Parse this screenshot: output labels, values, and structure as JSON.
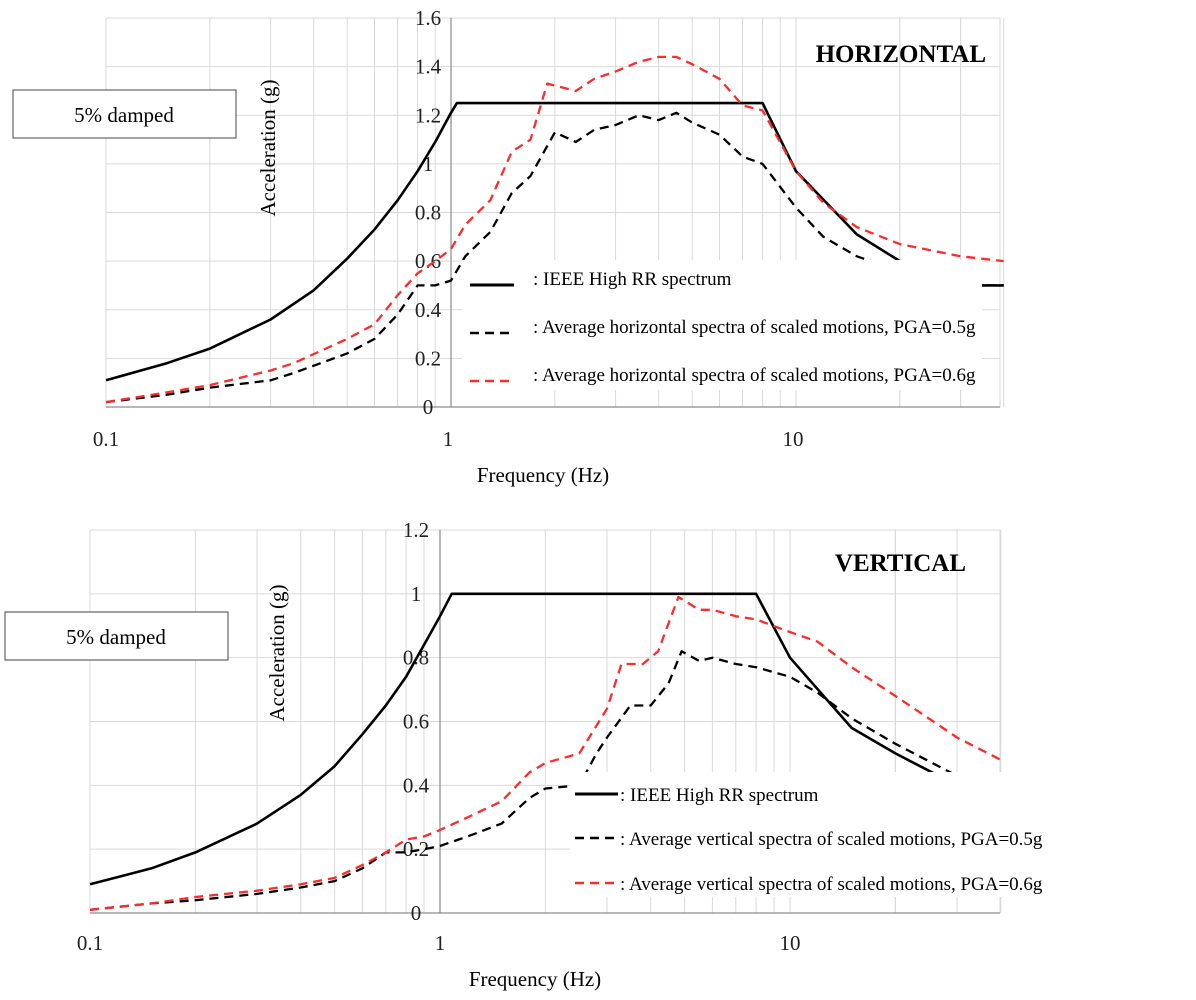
{
  "chart_data": [
    {
      "type": "line",
      "title": "HORIZONTAL",
      "note": "5% damped",
      "xlabel": "Frequency (Hz)",
      "ylabel": "Acceleration (g)",
      "x_scale": "log",
      "xlim": [
        0.1,
        40
      ],
      "ylim": [
        0,
        1.6
      ],
      "x_tick_labels": [
        "0.1",
        "1",
        "10"
      ],
      "y_tick_labels": [
        "0",
        "0.2",
        "0.4",
        "0.6",
        "0.8",
        "1",
        "1.2",
        "1.4",
        "1.6"
      ],
      "grid": true,
      "legend_position": "bottom-right",
      "series": [
        {
          "name": ": IEEE High RR spectrum",
          "color": "#000000",
          "style": "solid",
          "points": [
            [
              0.1,
              0.11
            ],
            [
              0.15,
              0.18
            ],
            [
              0.2,
              0.24
            ],
            [
              0.3,
              0.36
            ],
            [
              0.4,
              0.48
            ],
            [
              0.5,
              0.61
            ],
            [
              0.6,
              0.73
            ],
            [
              0.7,
              0.85
            ],
            [
              0.8,
              0.97
            ],
            [
              0.9,
              1.09
            ],
            [
              1.0,
              1.21
            ],
            [
              1.04,
              1.25
            ],
            [
              8,
              1.25
            ],
            [
              10,
              0.97
            ],
            [
              15,
              0.71
            ],
            [
              20,
              0.6
            ],
            [
              30,
              0.5
            ],
            [
              40,
              0.5
            ]
          ]
        },
        {
          "name": ": Average horizontal spectra of scaled motions, PGA=0.5g",
          "color": "#000000",
          "style": "dashed",
          "points": [
            [
              0.1,
              0.02
            ],
            [
              0.15,
              0.05
            ],
            [
              0.2,
              0.08
            ],
            [
              0.3,
              0.11
            ],
            [
              0.35,
              0.14
            ],
            [
              0.5,
              0.22
            ],
            [
              0.6,
              0.28
            ],
            [
              0.7,
              0.38
            ],
            [
              0.8,
              0.5
            ],
            [
              0.9,
              0.5
            ],
            [
              1.0,
              0.52
            ],
            [
              1.1,
              0.62
            ],
            [
              1.3,
              0.72
            ],
            [
              1.5,
              0.88
            ],
            [
              1.7,
              0.95
            ],
            [
              2.0,
              1.13
            ],
            [
              2.3,
              1.09
            ],
            [
              2.6,
              1.14
            ],
            [
              3.0,
              1.16
            ],
            [
              3.5,
              1.2
            ],
            [
              4.0,
              1.18
            ],
            [
              4.5,
              1.21
            ],
            [
              5.0,
              1.17
            ],
            [
              6.0,
              1.12
            ],
            [
              7.0,
              1.03
            ],
            [
              8.0,
              1.0
            ],
            [
              10,
              0.82
            ],
            [
              12,
              0.7
            ],
            [
              15,
              0.62
            ],
            [
              20,
              0.56
            ],
            [
              30,
              0.5
            ],
            [
              40,
              0.5
            ]
          ]
        },
        {
          "name": ": Average horizontal spectra of scaled motions, PGA=0.6g",
          "color": "#ff2a2a",
          "style": "dashed",
          "points": [
            [
              0.1,
              0.02
            ],
            [
              0.15,
              0.06
            ],
            [
              0.2,
              0.09
            ],
            [
              0.3,
              0.15
            ],
            [
              0.35,
              0.18
            ],
            [
              0.5,
              0.28
            ],
            [
              0.6,
              0.34
            ],
            [
              0.7,
              0.46
            ],
            [
              0.8,
              0.55
            ],
            [
              0.9,
              0.6
            ],
            [
              1.0,
              0.65
            ],
            [
              1.1,
              0.75
            ],
            [
              1.3,
              0.85
            ],
            [
              1.5,
              1.05
            ],
            [
              1.7,
              1.1
            ],
            [
              1.9,
              1.33
            ],
            [
              2.3,
              1.3
            ],
            [
              2.6,
              1.35
            ],
            [
              3.0,
              1.38
            ],
            [
              3.5,
              1.42
            ],
            [
              4.0,
              1.44
            ],
            [
              4.5,
              1.44
            ],
            [
              5.0,
              1.41
            ],
            [
              6.0,
              1.35
            ],
            [
              7.0,
              1.24
            ],
            [
              8.0,
              1.22
            ],
            [
              10,
              0.97
            ],
            [
              12,
              0.84
            ],
            [
              15,
              0.74
            ],
            [
              20,
              0.67
            ],
            [
              30,
              0.62
            ],
            [
              40,
              0.6
            ]
          ]
        }
      ]
    },
    {
      "type": "line",
      "title": "VERTICAL",
      "note": "5% damped",
      "xlabel": "Frequency (Hz)",
      "ylabel": "Acceleration (g)",
      "x_scale": "log",
      "xlim": [
        0.1,
        40
      ],
      "ylim": [
        0,
        1.2
      ],
      "x_tick_labels": [
        "0.1",
        "1",
        "10"
      ],
      "y_tick_labels": [
        "0",
        "0.2",
        "0.4",
        "0.6",
        "0.8",
        "1",
        "1.2"
      ],
      "grid": true,
      "legend_position": "bottom-right",
      "series": [
        {
          "name": ": IEEE High RR spectrum",
          "color": "#000000",
          "style": "solid",
          "points": [
            [
              0.1,
              0.09
            ],
            [
              0.15,
              0.14
            ],
            [
              0.2,
              0.19
            ],
            [
              0.3,
              0.28
            ],
            [
              0.4,
              0.37
            ],
            [
              0.5,
              0.46
            ],
            [
              0.6,
              0.56
            ],
            [
              0.7,
              0.65
            ],
            [
              0.8,
              0.74
            ],
            [
              0.9,
              0.84
            ],
            [
              1.0,
              0.93
            ],
            [
              1.08,
              1.0
            ],
            [
              8,
              1.0
            ],
            [
              10,
              0.8
            ],
            [
              15,
              0.58
            ],
            [
              20,
              0.5
            ],
            [
              30,
              0.4
            ],
            [
              40,
              0.4
            ]
          ]
        },
        {
          "name": ": Average vertical spectra of scaled motions, PGA=0.5g",
          "color": "#000000",
          "style": "dashed",
          "points": [
            [
              0.1,
              0.01
            ],
            [
              0.15,
              0.03
            ],
            [
              0.2,
              0.04
            ],
            [
              0.3,
              0.06
            ],
            [
              0.4,
              0.08
            ],
            [
              0.5,
              0.1
            ],
            [
              0.6,
              0.14
            ],
            [
              0.7,
              0.19
            ],
            [
              0.8,
              0.19
            ],
            [
              0.9,
              0.2
            ],
            [
              1.0,
              0.21
            ],
            [
              1.2,
              0.24
            ],
            [
              1.5,
              0.28
            ],
            [
              1.8,
              0.36
            ],
            [
              2.0,
              0.39
            ],
            [
              2.5,
              0.4
            ],
            [
              2.8,
              0.5
            ],
            [
              3.0,
              0.55
            ],
            [
              3.5,
              0.65
            ],
            [
              4.0,
              0.65
            ],
            [
              4.5,
              0.72
            ],
            [
              4.9,
              0.82
            ],
            [
              5.5,
              0.79
            ],
            [
              6.0,
              0.8
            ],
            [
              7.0,
              0.78
            ],
            [
              8.0,
              0.77
            ],
            [
              10,
              0.74
            ],
            [
              12,
              0.69
            ],
            [
              15,
              0.61
            ],
            [
              20,
              0.53
            ],
            [
              30,
              0.43
            ],
            [
              40,
              0.4
            ]
          ]
        },
        {
          "name": ": Average vertical spectra of scaled motions, PGA=0.6g",
          "color": "#ff2a2a",
          "style": "dashed",
          "points": [
            [
              0.1,
              0.01
            ],
            [
              0.15,
              0.03
            ],
            [
              0.2,
              0.05
            ],
            [
              0.3,
              0.07
            ],
            [
              0.4,
              0.09
            ],
            [
              0.5,
              0.11
            ],
            [
              0.6,
              0.15
            ],
            [
              0.7,
              0.19
            ],
            [
              0.8,
              0.23
            ],
            [
              0.9,
              0.24
            ],
            [
              1.0,
              0.26
            ],
            [
              1.2,
              0.3
            ],
            [
              1.5,
              0.35
            ],
            [
              1.8,
              0.44
            ],
            [
              2.0,
              0.47
            ],
            [
              2.5,
              0.5
            ],
            [
              3.0,
              0.64
            ],
            [
              3.3,
              0.78
            ],
            [
              3.8,
              0.78
            ],
            [
              4.2,
              0.82
            ],
            [
              4.8,
              0.99
            ],
            [
              5.5,
              0.95
            ],
            [
              6.0,
              0.95
            ],
            [
              7.0,
              0.93
            ],
            [
              8.0,
              0.92
            ],
            [
              10,
              0.88
            ],
            [
              12,
              0.85
            ],
            [
              15,
              0.77
            ],
            [
              20,
              0.68
            ],
            [
              30,
              0.55
            ],
            [
              40,
              0.48
            ]
          ]
        }
      ]
    }
  ]
}
